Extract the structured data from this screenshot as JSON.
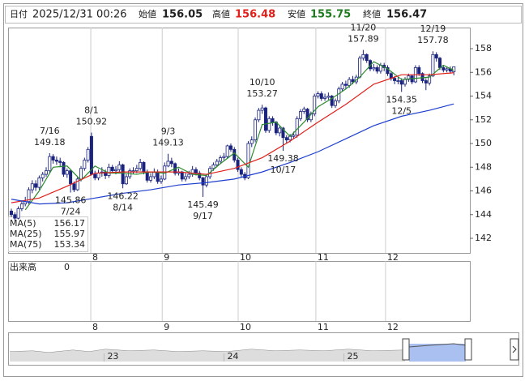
{
  "header": {
    "date_label": "日付",
    "date": "2025/12/31 00:26",
    "open_label": "始値",
    "open": 156.05,
    "high_label": "高値",
    "high": 156.48,
    "low_label": "安値",
    "low": 155.75,
    "close_label": "終値",
    "close": 156.47
  },
  "chart_data": {
    "type": "candlestick",
    "ylim": [
      140.77,
      159.78
    ],
    "yticks": [
      142,
      144,
      146,
      148,
      150,
      152,
      154,
      156,
      158
    ],
    "xlim": [
      -0.93,
      131.6
    ],
    "xticks": [
      {
        "value": 22.8,
        "label": "8"
      },
      {
        "value": 43.3,
        "label": "9"
      },
      {
        "value": 65.1,
        "label": "10"
      },
      {
        "value": 87.4,
        "label": "11"
      },
      {
        "value": 107.4,
        "label": "12"
      }
    ],
    "up_color": "#ffffff",
    "down_color": "#1a237e",
    "border_color": "#1a237e",
    "open": [
      144.3,
      144.0,
      143.7,
      144.5,
      144.9,
      145.1,
      146.1,
      146.6,
      146.3,
      147.1,
      147.4,
      147.7,
      148.9,
      148.6,
      148.5,
      148.4,
      147.4,
      147.7,
      146.6,
      146.1,
      147.0,
      147.9,
      148.6,
      150.6,
      147.4,
      147.1,
      147.5,
      147.6,
      147.3,
      148.0,
      147.7,
      147.8,
      148.2,
      146.6,
      147.2,
      147.7,
      147.7,
      147.9,
      148.4,
      147.6,
      146.9,
      147.2,
      147.6,
      146.8,
      147.0,
      148.1,
      148.5,
      148.3,
      147.5,
      147.6,
      147.0,
      147.2,
      147.4,
      147.8,
      147.5,
      147.1,
      146.5,
      147.2,
      147.9,
      148.2,
      148.5,
      148.8,
      148.9,
      149.8,
      149.5,
      148.6,
      147.8,
      147.4,
      147.1,
      150.0,
      150.3,
      152.0,
      152.8,
      153.0,
      151.1,
      152.1,
      151.8,
      150.9,
      151.3,
      150.5,
      150.3,
      150.6,
      150.7,
      152.1,
      152.7,
      152.9,
      152.0,
      152.5,
      154.0,
      154.2,
      153.8,
      153.9,
      154.0,
      153.2,
      153.6,
      154.6,
      155.0,
      154.9,
      155.4,
      155.2,
      155.6,
      157.2,
      157.5,
      157.0,
      156.3,
      156.4,
      156.1,
      156.6,
      156.4,
      155.9,
      155.5,
      155.3,
      155.3,
      155.0,
      155.4,
      155.7,
      155.2,
      156.4,
      155.9,
      155.3,
      155.1,
      155.7,
      157.5,
      157.2,
      156.4,
      156.2,
      156.3,
      156.05
    ],
    "high": [
      144.5,
      144.2,
      144.7,
      145.2,
      145.5,
      146.3,
      146.9,
      146.9,
      147.3,
      147.6,
      148.0,
      149.18,
      149.1,
      148.9,
      148.8,
      148.5,
      147.9,
      147.8,
      146.8,
      147.2,
      148.1,
      148.8,
      149.7,
      150.92,
      147.7,
      147.8,
      148.0,
      147.8,
      148.3,
      148.2,
      148.1,
      148.5,
      148.3,
      147.4,
      147.9,
      148.0,
      148.2,
      148.7,
      148.5,
      147.8,
      147.5,
      147.9,
      147.8,
      147.3,
      148.4,
      149.13,
      148.8,
      148.4,
      147.9,
      147.7,
      147.5,
      147.7,
      148.1,
      148.0,
      147.7,
      147.2,
      147.4,
      148.1,
      148.4,
      148.7,
      149.0,
      149.2,
      149.9,
      150.0,
      149.7,
      148.8,
      148.0,
      147.6,
      150.2,
      150.6,
      152.2,
      153.0,
      153.27,
      153.1,
      152.3,
      152.3,
      151.9,
      151.5,
      151.4,
      150.7,
      150.8,
      151.0,
      152.3,
      152.9,
      153.1,
      153.0,
      152.7,
      154.2,
      154.4,
      154.4,
      154.2,
      154.3,
      154.1,
      153.8,
      154.8,
      155.2,
      155.3,
      155.6,
      155.7,
      155.8,
      157.4,
      157.89,
      157.6,
      157.1,
      156.7,
      156.6,
      156.8,
      156.8,
      156.6,
      156.1,
      155.7,
      155.6,
      155.5,
      155.6,
      155.9,
      155.8,
      156.6,
      156.6,
      156.0,
      155.5,
      155.9,
      157.78,
      157.7,
      157.3,
      156.6,
      156.5,
      156.5,
      156.48
    ],
    "low": [
      143.8,
      143.5,
      143.6,
      144.3,
      144.7,
      144.9,
      145.8,
      146.0,
      146.1,
      146.8,
      147.2,
      147.5,
      148.3,
      148.2,
      148.0,
      147.2,
      147.1,
      145.86,
      145.9,
      146.0,
      146.8,
      147.7,
      148.4,
      147.3,
      146.9,
      146.9,
      147.2,
      147.0,
      147.1,
      147.5,
      147.4,
      147.6,
      146.22,
      146.5,
      147.0,
      147.4,
      147.5,
      147.7,
      147.4,
      146.7,
      146.7,
      147.0,
      146.6,
      146.6,
      146.9,
      148.0,
      148.0,
      147.3,
      147.3,
      146.8,
      146.8,
      147.0,
      147.2,
      147.3,
      146.9,
      145.49,
      146.3,
      147.0,
      147.7,
      148.0,
      148.3,
      148.6,
      148.7,
      149.3,
      148.4,
      147.6,
      147.1,
      146.9,
      147.0,
      149.7,
      150.1,
      151.8,
      152.5,
      150.9,
      150.9,
      151.5,
      150.7,
      150.6,
      149.38,
      150.0,
      150.1,
      150.4,
      150.5,
      151.9,
      152.5,
      151.8,
      151.8,
      152.3,
      153.8,
      153.6,
      153.6,
      153.7,
      153.0,
      153.0,
      153.4,
      154.4,
      154.6,
      154.7,
      155.0,
      155.0,
      155.5,
      157.0,
      156.8,
      156.1,
      156.1,
      155.9,
      155.9,
      156.1,
      155.7,
      155.3,
      155.0,
      155.0,
      154.35,
      154.8,
      155.2,
      155.0,
      155.1,
      155.7,
      155.1,
      154.5,
      154.9,
      155.6,
      156.9,
      156.2,
      156.0,
      156.0,
      155.9,
      155.75
    ],
    "close": [
      144.0,
      143.7,
      144.5,
      144.9,
      145.1,
      146.1,
      146.6,
      146.3,
      147.1,
      147.4,
      147.7,
      148.9,
      148.6,
      148.5,
      148.4,
      147.4,
      147.7,
      146.6,
      146.1,
      147.0,
      147.9,
      148.6,
      149.5,
      147.4,
      147.1,
      147.5,
      147.6,
      147.3,
      148.0,
      147.7,
      147.8,
      148.2,
      146.6,
      147.2,
      147.7,
      147.7,
      147.9,
      148.4,
      147.6,
      146.9,
      147.2,
      147.6,
      146.8,
      147.0,
      148.1,
      148.5,
      148.3,
      147.5,
      147.6,
      147.0,
      147.2,
      147.4,
      147.8,
      147.5,
      147.1,
      146.5,
      147.2,
      147.9,
      148.2,
      148.5,
      148.8,
      148.9,
      149.8,
      149.5,
      148.6,
      147.8,
      147.4,
      147.1,
      150.0,
      150.3,
      152.0,
      152.8,
      153.0,
      151.1,
      152.1,
      151.8,
      150.9,
      151.3,
      150.5,
      150.3,
      150.6,
      150.7,
      152.1,
      152.7,
      152.9,
      152.0,
      152.5,
      154.0,
      154.2,
      153.8,
      153.9,
      154.0,
      153.2,
      153.6,
      154.6,
      155.0,
      154.9,
      155.4,
      155.2,
      155.6,
      157.2,
      157.5,
      157.0,
      156.3,
      156.4,
      156.1,
      156.6,
      156.4,
      155.9,
      155.5,
      155.3,
      155.3,
      155.0,
      155.4,
      155.7,
      155.2,
      156.4,
      155.9,
      155.3,
      155.1,
      155.7,
      157.5,
      157.2,
      156.4,
      156.2,
      156.3,
      156.1,
      156.47
    ],
    "series": [
      {
        "name": "MA(5)",
        "color": "#2e8b2e",
        "x": [
          4,
          8,
          12,
          16,
          20,
          24,
          28,
          32,
          36,
          40,
          44,
          48,
          52,
          56,
          60,
          64,
          68,
          72,
          76,
          80,
          84,
          88,
          92,
          96,
          100,
          104,
          108,
          112,
          116,
          120,
          124,
          127
        ],
        "values": [
          144.4,
          146.0,
          148.0,
          148.1,
          146.9,
          148.1,
          147.5,
          147.5,
          147.4,
          147.6,
          147.5,
          148.0,
          147.4,
          147.3,
          148.3,
          149.2,
          148.0,
          151.6,
          151.8,
          150.6,
          151.8,
          153.1,
          153.8,
          154.6,
          155.6,
          156.9,
          156.3,
          155.4,
          155.5,
          155.6,
          156.6,
          156.17
        ]
      },
      {
        "name": "MA(25)",
        "color": "#e0201b",
        "x": [
          0,
          8,
          16,
          24,
          32,
          40,
          48,
          56,
          64,
          72,
          80,
          88,
          96,
          104,
          112,
          120,
          127
        ],
        "values": [
          145.0,
          145.4,
          146.4,
          147.5,
          147.6,
          147.6,
          147.6,
          147.4,
          147.9,
          148.8,
          150.2,
          151.8,
          153.3,
          155.0,
          155.8,
          155.8,
          155.97
        ]
      },
      {
        "name": "MA(75)",
        "color": "#1f3fcf",
        "x": [
          0,
          8,
          16,
          24,
          32,
          40,
          48,
          56,
          64,
          72,
          80,
          88,
          96,
          104,
          112,
          120,
          127
        ],
        "values": [
          145.3,
          144.9,
          145.0,
          145.4,
          145.8,
          146.1,
          146.5,
          146.7,
          147.0,
          147.6,
          148.4,
          149.3,
          150.4,
          151.5,
          152.3,
          152.8,
          153.34
        ]
      }
    ],
    "annotations": [
      {
        "date": "7/16",
        "value": 149.18
      },
      {
        "date": "7/24",
        "value": 145.86
      },
      {
        "date": "8/1",
        "value": 150.92
      },
      {
        "date": "8/14",
        "value": 146.22
      },
      {
        "date": "9/3",
        "value": 149.13
      },
      {
        "date": "9/17",
        "value": 145.49
      },
      {
        "date": "10/10",
        "value": 153.27
      },
      {
        "date": "10/17",
        "value": 149.38
      },
      {
        "date": "11/20",
        "value": 157.89
      },
      {
        "date": "12/5",
        "value": 154.35
      },
      {
        "date": "12/19",
        "value": 157.78
      }
    ],
    "volume_label": "出来高",
    "volume_value": 0,
    "navigator": {
      "xlim": [
        2022.2,
        2026.05
      ],
      "xticks": [
        {
          "value": 2023,
          "label": "23"
        },
        {
          "value": 2024,
          "label": "24"
        },
        {
          "value": 2025,
          "label": "25"
        }
      ]
    }
  }
}
